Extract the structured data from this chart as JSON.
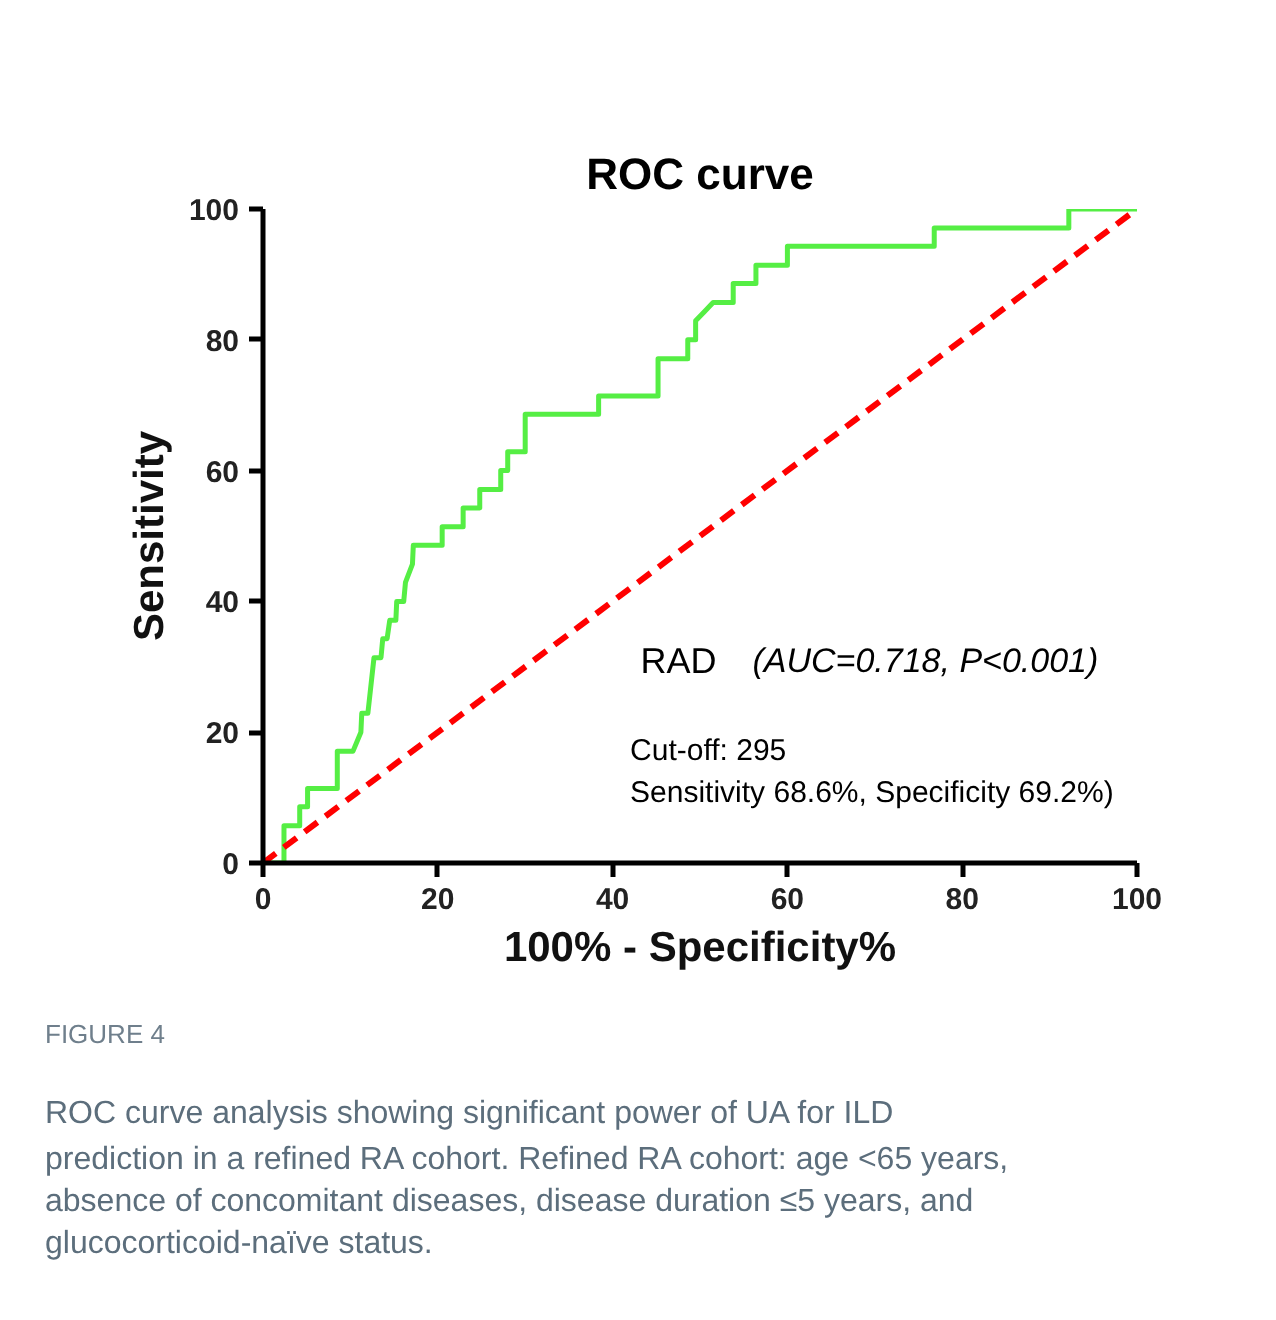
{
  "chart_data": {
    "type": "line",
    "title": "ROC curve",
    "xlabel": "100% - Specificity%",
    "ylabel": "Sensitivity",
    "xlim": [
      0,
      100
    ],
    "ylim": [
      0,
      100
    ],
    "xticks": [
      0,
      20,
      40,
      60,
      80,
      100
    ],
    "yticks": [
      0,
      20,
      40,
      60,
      80,
      100
    ],
    "grid": false,
    "series": [
      {
        "color": "#55ee44",
        "line_style": "solid",
        "x": [
          0,
          2.4,
          2.4,
          4.2,
          4.2,
          5.1,
          5.1,
          8.5,
          8.5,
          10.3,
          11.2,
          11.3,
          12.0,
          12.7,
          13.5,
          13.7,
          14.2,
          14.5,
          15.2,
          15.3,
          16.1,
          16.3,
          17.1,
          17.2,
          20.5,
          20.5,
          22.9,
          22.9,
          24.8,
          24.8,
          27.2,
          27.2,
          28.0,
          28.0,
          30.0,
          30.0,
          38.4,
          38.4,
          45.2,
          45.2,
          48.6,
          48.6,
          49.5,
          49.5,
          50.5,
          51.5,
          53.8,
          53.8,
          56.4,
          56.4,
          60.0,
          60.0,
          76.8,
          76.8,
          92.2,
          92.2,
          100
        ],
        "values": [
          0,
          0,
          5.7,
          5.7,
          8.6,
          8.6,
          11.4,
          11.4,
          17.1,
          17.1,
          20.0,
          22.9,
          22.9,
          31.4,
          31.4,
          34.3,
          34.3,
          37.1,
          37.1,
          40.0,
          40.0,
          42.9,
          45.7,
          48.6,
          48.6,
          51.4,
          51.4,
          54.3,
          54.3,
          57.1,
          57.1,
          60.0,
          60.0,
          62.9,
          62.9,
          68.6,
          68.6,
          71.4,
          71.4,
          77.1,
          77.1,
          80.0,
          80.0,
          82.9,
          84.3,
          85.7,
          85.7,
          88.6,
          88.6,
          91.4,
          91.4,
          94.3,
          94.3,
          97.1,
          97.1,
          100,
          100
        ]
      },
      {
        "color": "#ff0000",
        "line_style": "dashed",
        "x": [
          0,
          100
        ],
        "values": [
          0,
          100
        ]
      }
    ],
    "annotations": [
      "RAD",
      "(AUC=0.718, P<0.001)",
      "Cut-off: 295",
      "Sensitivity 68.6%, Specificity 69.2%)",
      "FIGURE 4",
      "ROC curve analysis showing significant power of UA for ILD prediction in a refined RA cohort. Refined RA cohort: age <65 years, absence of concomitant diseases, disease duration ≤5 years, and glucocorticoid-naïve status."
    ]
  }
}
